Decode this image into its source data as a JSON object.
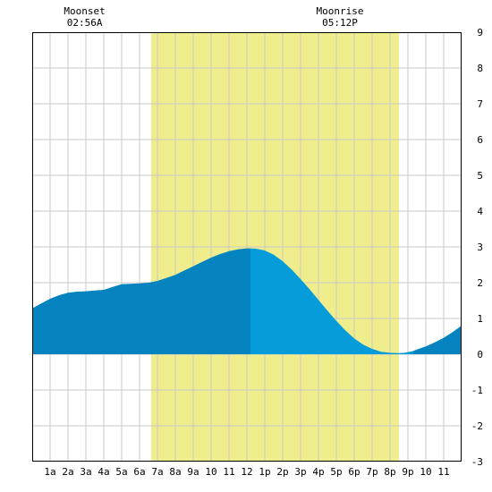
{
  "chart_data": {
    "type": "area",
    "x_unit": "hour",
    "xlim": [
      -1,
      23
    ],
    "ylim": [
      -3,
      9
    ],
    "grid": true,
    "x_tick_labels": [
      {
        "x": 0,
        "label": "1a"
      },
      {
        "x": 1,
        "label": "2a"
      },
      {
        "x": 2,
        "label": "3a"
      },
      {
        "x": 3,
        "label": "4a"
      },
      {
        "x": 4,
        "label": "5a"
      },
      {
        "x": 5,
        "label": "6a"
      },
      {
        "x": 6,
        "label": "7a"
      },
      {
        "x": 7,
        "label": "8a"
      },
      {
        "x": 8,
        "label": "9a"
      },
      {
        "x": 9,
        "label": "10"
      },
      {
        "x": 10,
        "label": "11"
      },
      {
        "x": 11,
        "label": "12"
      },
      {
        "x": 12,
        "label": "1p"
      },
      {
        "x": 13,
        "label": "2p"
      },
      {
        "x": 14,
        "label": "3p"
      },
      {
        "x": 15,
        "label": "4p"
      },
      {
        "x": 16,
        "label": "5p"
      },
      {
        "x": 17,
        "label": "6p"
      },
      {
        "x": 18,
        "label": "7p"
      },
      {
        "x": 19,
        "label": "8p"
      },
      {
        "x": 20,
        "label": "9p"
      },
      {
        "x": 21,
        "label": "10"
      },
      {
        "x": 22,
        "label": "11"
      }
    ],
    "y_tick_labels": [
      {
        "y": 9,
        "label": "9"
      },
      {
        "y": 8,
        "label": "8"
      },
      {
        "y": 7,
        "label": "7"
      },
      {
        "y": 6,
        "label": "6"
      },
      {
        "y": 5,
        "label": "5"
      },
      {
        "y": 4,
        "label": "4"
      },
      {
        "y": 3,
        "label": "3"
      },
      {
        "y": 2,
        "label": "2"
      },
      {
        "y": 1,
        "label": "1"
      },
      {
        "y": 0,
        "label": "0"
      },
      {
        "y": -1,
        "label": "-1"
      },
      {
        "y": -2,
        "label": "-2"
      },
      {
        "y": -3,
        "label": "-3"
      }
    ],
    "daylight": {
      "start": 5.65,
      "end": 19.5
    },
    "moon_events": [
      {
        "name": "Moonset",
        "time": "02:56A",
        "x": 1.93
      },
      {
        "name": "Moonrise",
        "time": "05:12P",
        "x": 16.2
      }
    ],
    "tide_curve": {
      "x": [
        -1,
        -0.5,
        0,
        0.5,
        1,
        1.5,
        2,
        2.5,
        3,
        3.5,
        4,
        4.5,
        5,
        5.5,
        6,
        6.5,
        7,
        7.5,
        8,
        8.5,
        9,
        9.5,
        10,
        10.5,
        11,
        11.2,
        11.5,
        12,
        12.5,
        13,
        13.5,
        14,
        14.5,
        15,
        15.5,
        16,
        16.5,
        17,
        17.5,
        18,
        18.5,
        19,
        19.5,
        19.8,
        20,
        20.3,
        20.5,
        21,
        21.5,
        22,
        22.5,
        23
      ],
      "y": [
        1.28,
        1.42,
        1.55,
        1.65,
        1.72,
        1.75,
        1.76,
        1.78,
        1.8,
        1.88,
        1.96,
        1.97,
        1.98,
        2.0,
        2.05,
        2.13,
        2.22,
        2.34,
        2.46,
        2.58,
        2.7,
        2.8,
        2.88,
        2.93,
        2.96,
        2.96,
        2.95,
        2.9,
        2.78,
        2.6,
        2.37,
        2.1,
        1.82,
        1.52,
        1.22,
        0.93,
        0.67,
        0.44,
        0.27,
        0.15,
        0.07,
        0.04,
        0.03,
        0.04,
        0.06,
        0.09,
        0.13,
        0.22,
        0.33,
        0.46,
        0.62,
        0.8
      ]
    },
    "colors": {
      "daylight": "#f0ee8c",
      "tide_dark": "#0583bf",
      "tide_light": "#069cd9",
      "dark_segments": [
        [
          -1,
          11.2
        ],
        [
          20.3,
          23
        ]
      ],
      "light_segments": [
        [
          11.2,
          20.3
        ]
      ]
    }
  }
}
